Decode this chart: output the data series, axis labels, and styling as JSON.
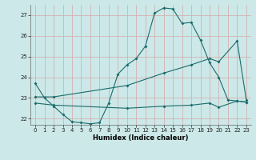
{
  "xlabel": "Humidex (Indice chaleur)",
  "bg_color": "#cce8e8",
  "line_color": "#1a6b6b",
  "grid_color": "#d4a8a8",
  "xlim": [
    -0.5,
    23.5
  ],
  "ylim": [
    21.7,
    27.5
  ],
  "yticks": [
    22,
    23,
    24,
    25,
    26,
    27
  ],
  "xticks": [
    0,
    1,
    2,
    3,
    4,
    5,
    6,
    7,
    8,
    9,
    10,
    11,
    12,
    13,
    14,
    15,
    16,
    17,
    18,
    19,
    20,
    21,
    22,
    23
  ],
  "line1_x": [
    0,
    1,
    2,
    3,
    4,
    5,
    6,
    7,
    8,
    9,
    10,
    11,
    12,
    13,
    14,
    15,
    16,
    17,
    18,
    19,
    20,
    21,
    22,
    23
  ],
  "line1_y": [
    23.7,
    23.0,
    22.6,
    22.2,
    21.85,
    21.8,
    21.75,
    21.8,
    22.75,
    24.15,
    24.6,
    24.9,
    25.5,
    27.1,
    27.35,
    27.3,
    26.6,
    26.65,
    25.8,
    24.7,
    24.0,
    22.9,
    22.85,
    22.8
  ],
  "line2_x": [
    0,
    2,
    10,
    14,
    17,
    19,
    20,
    22,
    23
  ],
  "line2_y": [
    23.05,
    23.05,
    23.6,
    24.2,
    24.6,
    24.9,
    24.75,
    25.75,
    22.9
  ],
  "line3_x": [
    0,
    2,
    10,
    14,
    17,
    19,
    20,
    22,
    23
  ],
  "line3_y": [
    22.75,
    22.65,
    22.5,
    22.6,
    22.65,
    22.75,
    22.55,
    22.85,
    22.8
  ]
}
